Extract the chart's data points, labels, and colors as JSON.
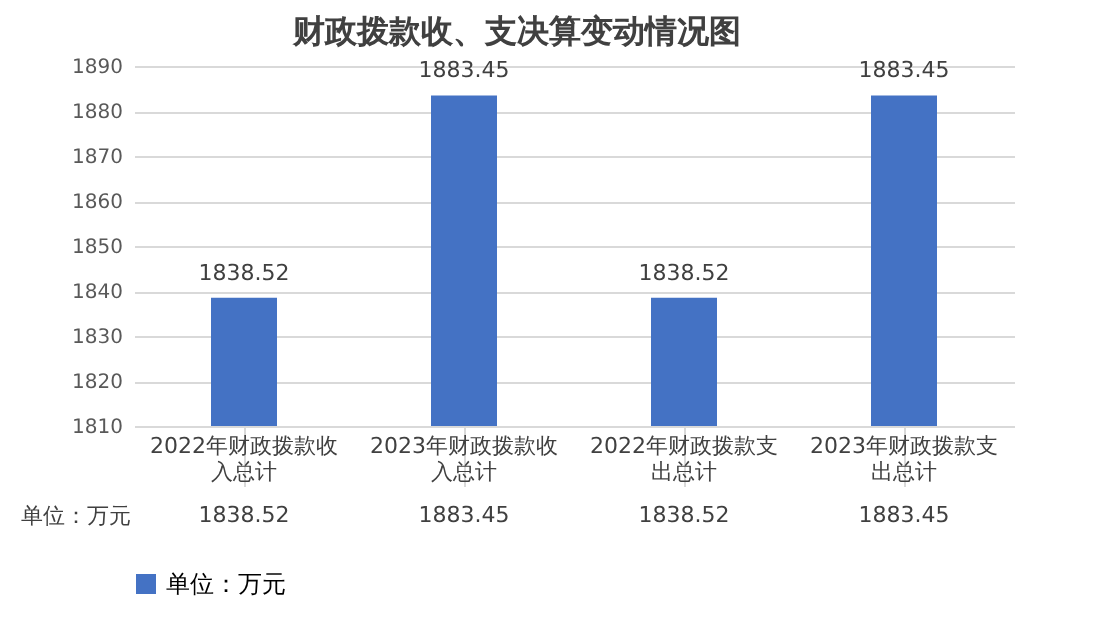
{
  "chart_data": {
    "type": "bar",
    "title": "财政拨款收、支决算变动情况图",
    "categories": [
      "2022年财政拨款收入总计",
      "2023年财政拨款收入总计",
      "2022年财政拨款支出总计",
      "2023年财政拨款支出总计"
    ],
    "series": [
      {
        "name": "单位：万元",
        "color": "#4472c4",
        "values": [
          1838.52,
          1883.45,
          1838.52,
          1883.45
        ]
      }
    ],
    "ylim": [
      1810,
      1890
    ],
    "yticks": [
      1810,
      1820,
      1830,
      1840,
      1850,
      1860,
      1870,
      1880,
      1890
    ],
    "grid": "y",
    "legend": "bottom",
    "data_labels": true,
    "annotations": [
      "1838.52",
      "1883.45",
      "1838.52",
      "1883.45"
    ]
  }
}
